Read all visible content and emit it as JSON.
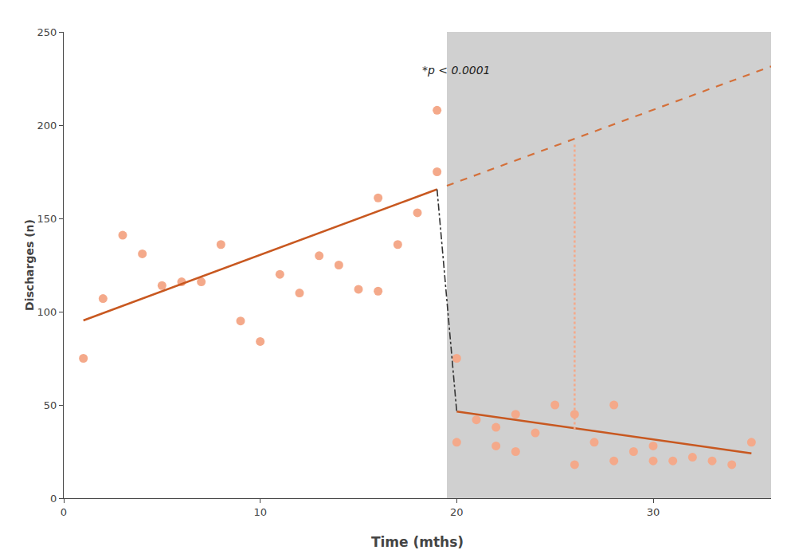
{
  "chart_data": {
    "type": "scatter",
    "xlabel": "Time (mths)",
    "ylabel": "Discharges (n)",
    "annotation": "*p < 0.0001",
    "xlim": [
      0,
      36
    ],
    "ylim": [
      0,
      250
    ],
    "xticks": [
      0,
      10,
      20,
      30
    ],
    "yticks": [
      0,
      50,
      100,
      150,
      200,
      250
    ],
    "grid": false,
    "shade": {
      "from": 19.5,
      "color": "#D0D0D0"
    },
    "series": [
      {
        "type": "scatter",
        "marker": "circle",
        "color": "#F4A98A",
        "x": [
          1,
          2,
          3,
          4,
          5,
          6,
          7,
          8,
          9,
          10,
          11,
          12,
          13,
          14,
          15,
          16,
          17,
          18,
          16,
          19
        ],
        "values": [
          75,
          107,
          141,
          131,
          114,
          116,
          116,
          136,
          95,
          84,
          120,
          110,
          130,
          125,
          112,
          111,
          136,
          153,
          161,
          175
        ]
      },
      {
        "type": "scatter",
        "marker": "circle",
        "color": "#F4A98A",
        "x": [
          19
        ],
        "values": [
          208
        ]
      },
      {
        "type": "scatter",
        "marker": "circle",
        "color": "#F4A98A",
        "x": [
          20,
          20,
          21,
          22,
          22,
          23,
          23,
          24,
          25,
          26,
          26,
          27,
          28,
          28,
          29,
          30,
          30,
          31,
          32,
          33,
          34,
          35
        ],
        "values": [
          75,
          30,
          42,
          28,
          38,
          45,
          25,
          35,
          50,
          45,
          18,
          30,
          50,
          20,
          25,
          28,
          20,
          20,
          22,
          20,
          18,
          30
        ]
      },
      {
        "type": "line",
        "line_style": "solid",
        "color": "#C85820",
        "x": [
          1,
          19
        ],
        "values": [
          95.3,
          165.6
        ]
      },
      {
        "type": "line",
        "line_style": "solid",
        "color": "#C85820",
        "x": [
          20,
          35
        ],
        "values": [
          46.5,
          24.0
        ]
      },
      {
        "type": "line",
        "line_style": "dashdot",
        "color": "#333333",
        "x": [
          19,
          20
        ],
        "values": [
          165.6,
          46.5
        ]
      },
      {
        "type": "line",
        "line_style": "dashed",
        "color": "#D4703A",
        "x": [
          19.5,
          36
        ],
        "values": [
          167.5,
          231.5
        ]
      },
      {
        "type": "line",
        "line_style": "dotted",
        "color": "#F4A98A",
        "x": [
          26,
          26
        ],
        "values": [
          37.0,
          189.5
        ]
      }
    ]
  }
}
